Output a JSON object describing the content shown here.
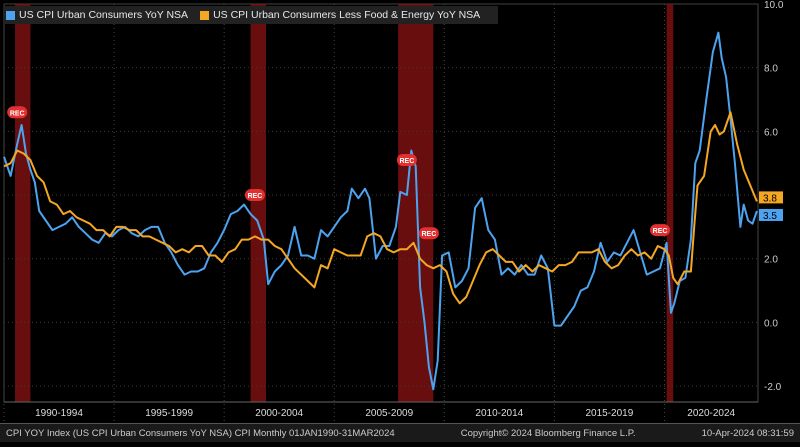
{
  "footer": {
    "series_desc": "CPI YOY Index (US CPI Urban Consumers YoY NSA) CPI  Monthly 01JAN1990-31MAR2024",
    "copyright": "Copyright© 2024 Bloomberg Finance L.P.",
    "timestamp": "10-Apr-2024 08:31:59"
  },
  "colors": {
    "headline": "#4da3f0",
    "core": "#f5a623",
    "recession": "#7a1010",
    "recession_label": "#e03030"
  },
  "chart_data": {
    "type": "line",
    "title": "",
    "xlabel": "",
    "ylabel": "",
    "x_range": [
      1990.0,
      2024.25
    ],
    "ylim": [
      -2.5,
      10.0
    ],
    "y_ticks": [
      -2.0,
      0.0,
      2.0,
      4.0,
      6.0,
      8.0,
      10.0
    ],
    "y_tick_labels": [
      "-2.0",
      "0.0",
      "2.0",
      "4.0",
      "6.0",
      "8.0",
      "10.0"
    ],
    "x_period_labels": [
      {
        "label": "1990-1994",
        "from": 1990,
        "to": 1995
      },
      {
        "label": "1995-1999",
        "from": 1995,
        "to": 2000
      },
      {
        "label": "2000-2004",
        "from": 2000,
        "to": 2005
      },
      {
        "label": "2005-2009",
        "from": 2005,
        "to": 2010
      },
      {
        "label": "2010-2014",
        "from": 2010,
        "to": 2015
      },
      {
        "label": "2015-2019",
        "from": 2015,
        "to": 2020
      },
      {
        "label": "2020-2024",
        "from": 2020,
        "to": 2024.25
      }
    ],
    "grid": true,
    "legend_position": "top-left",
    "recessions": [
      {
        "start": 1990.5,
        "end": 1991.2
      },
      {
        "start": 2001.2,
        "end": 2001.9
      },
      {
        "start": 2007.9,
        "end": 2009.5
      },
      {
        "start": 2020.1,
        "end": 2020.4
      }
    ],
    "recession_labels": [
      {
        "text": "REC",
        "x": 1990.6,
        "y": 6.6
      },
      {
        "text": "REC",
        "x": 2001.4,
        "y": 4.0
      },
      {
        "text": "REC",
        "x": 2008.3,
        "y": 5.1
      },
      {
        "text": "REC",
        "x": 2009.3,
        "y": 2.8
      },
      {
        "text": "REC",
        "x": 2019.8,
        "y": 2.9
      }
    ],
    "series": [
      {
        "name": "US CPI Urban Consumers YoY NSA",
        "color": "#4da3f0",
        "x": [
          1990.0,
          1990.3,
          1990.6,
          1990.8,
          1991.0,
          1991.2,
          1991.4,
          1991.6,
          1991.9,
          1992.2,
          1992.5,
          1992.8,
          1993.1,
          1993.4,
          1993.7,
          1994.0,
          1994.3,
          1994.6,
          1994.9,
          1995.2,
          1995.5,
          1995.8,
          1996.1,
          1996.4,
          1996.7,
          1997.0,
          1997.3,
          1997.6,
          1997.9,
          1998.2,
          1998.5,
          1998.8,
          1999.1,
          1999.4,
          1999.7,
          2000.0,
          2000.3,
          2000.6,
          2000.9,
          2001.2,
          2001.5,
          2001.8,
          2002.0,
          2002.3,
          2002.6,
          2002.9,
          2003.2,
          2003.5,
          2003.8,
          2004.1,
          2004.4,
          2004.7,
          2005.0,
          2005.3,
          2005.6,
          2005.8,
          2006.1,
          2006.4,
          2006.6,
          2006.9,
          2007.2,
          2007.5,
          2007.8,
          2008.0,
          2008.3,
          2008.5,
          2008.7,
          2008.9,
          2009.1,
          2009.3,
          2009.5,
          2009.7,
          2009.9,
          2010.2,
          2010.5,
          2010.8,
          2011.1,
          2011.4,
          2011.7,
          2012.0,
          2012.3,
          2012.6,
          2012.9,
          2013.2,
          2013.5,
          2013.8,
          2014.1,
          2014.4,
          2014.7,
          2015.0,
          2015.3,
          2015.6,
          2015.9,
          2016.2,
          2016.5,
          2016.8,
          2017.1,
          2017.4,
          2017.7,
          2018.0,
          2018.3,
          2018.6,
          2018.9,
          2019.2,
          2019.5,
          2019.8,
          2020.1,
          2020.3,
          2020.45,
          2020.7,
          2020.95,
          2021.2,
          2021.4,
          2021.6,
          2021.9,
          2022.2,
          2022.45,
          2022.6,
          2022.8,
          2023.0,
          2023.2,
          2023.45,
          2023.6,
          2023.8,
          2024.0,
          2024.2
        ],
        "values": [
          5.2,
          4.6,
          5.6,
          6.2,
          5.3,
          4.8,
          4.4,
          3.5,
          3.2,
          2.9,
          3.0,
          3.1,
          3.3,
          3.0,
          2.8,
          2.6,
          2.5,
          2.8,
          2.7,
          2.9,
          3.0,
          2.8,
          2.7,
          2.9,
          3.0,
          3.0,
          2.5,
          2.2,
          1.8,
          1.5,
          1.6,
          1.6,
          1.7,
          2.2,
          2.5,
          2.9,
          3.4,
          3.5,
          3.7,
          3.4,
          3.2,
          2.6,
          1.2,
          1.6,
          1.8,
          2.1,
          3.0,
          2.1,
          2.1,
          2.0,
          2.9,
          2.7,
          3.0,
          3.3,
          3.5,
          4.2,
          3.9,
          4.2,
          3.9,
          2.0,
          2.4,
          2.4,
          3.0,
          4.1,
          4.0,
          5.4,
          4.9,
          1.1,
          0.0,
          -1.4,
          -2.1,
          -1.2,
          2.1,
          2.2,
          1.1,
          1.3,
          1.7,
          3.6,
          3.9,
          2.9,
          2.6,
          1.5,
          1.7,
          1.5,
          1.8,
          1.5,
          1.5,
          2.1,
          1.7,
          -0.1,
          -0.1,
          0.2,
          0.5,
          1.0,
          1.1,
          1.6,
          2.5,
          1.9,
          2.2,
          2.1,
          2.5,
          2.9,
          2.2,
          1.5,
          1.6,
          1.7,
          2.5,
          0.3,
          0.6,
          1.3,
          1.4,
          2.6,
          5.0,
          5.4,
          7.0,
          8.5,
          9.1,
          8.3,
          7.7,
          6.4,
          5.0,
          3.0,
          3.7,
          3.2,
          3.1,
          3.5
        ]
      },
      {
        "name": "US CPI Urban Consumers Less Food & Energy YoY NSA",
        "color": "#f5a623",
        "x": [
          1990.0,
          1990.3,
          1990.6,
          1990.9,
          1991.2,
          1991.5,
          1991.8,
          1992.1,
          1992.4,
          1992.7,
          1993.0,
          1993.3,
          1993.6,
          1993.9,
          1994.2,
          1994.5,
          1994.8,
          1995.1,
          1995.4,
          1995.7,
          1996.0,
          1996.3,
          1996.6,
          1996.9,
          1997.2,
          1997.5,
          1997.8,
          1998.1,
          1998.4,
          1998.7,
          1999.0,
          1999.3,
          1999.6,
          1999.9,
          2000.2,
          2000.5,
          2000.8,
          2001.1,
          2001.4,
          2001.7,
          2002.0,
          2002.3,
          2002.6,
          2002.9,
          2003.2,
          2003.5,
          2003.8,
          2004.1,
          2004.4,
          2004.7,
          2005.0,
          2005.3,
          2005.6,
          2005.9,
          2006.2,
          2006.5,
          2006.8,
          2007.1,
          2007.4,
          2007.7,
          2008.0,
          2008.3,
          2008.6,
          2008.9,
          2009.2,
          2009.5,
          2009.8,
          2010.1,
          2010.4,
          2010.7,
          2011.0,
          2011.3,
          2011.6,
          2011.9,
          2012.2,
          2012.5,
          2012.8,
          2013.1,
          2013.4,
          2013.7,
          2014.0,
          2014.3,
          2014.6,
          2014.9,
          2015.2,
          2015.5,
          2015.8,
          2016.1,
          2016.4,
          2016.7,
          2017.0,
          2017.3,
          2017.6,
          2017.9,
          2018.2,
          2018.5,
          2018.8,
          2019.1,
          2019.4,
          2019.7,
          2020.0,
          2020.2,
          2020.4,
          2020.6,
          2020.9,
          2021.2,
          2021.35,
          2021.5,
          2021.8,
          2022.1,
          2022.3,
          2022.5,
          2022.7,
          2023.0,
          2023.3,
          2023.6,
          2023.9,
          2024.2
        ],
        "values": [
          4.9,
          5.0,
          5.4,
          5.3,
          5.1,
          4.6,
          4.4,
          3.8,
          3.7,
          3.4,
          3.5,
          3.3,
          3.2,
          3.1,
          2.9,
          2.9,
          2.7,
          3.0,
          3.0,
          2.9,
          2.9,
          2.7,
          2.7,
          2.6,
          2.5,
          2.4,
          2.2,
          2.3,
          2.2,
          2.4,
          2.4,
          2.1,
          2.1,
          1.9,
          2.2,
          2.3,
          2.6,
          2.6,
          2.7,
          2.6,
          2.6,
          2.4,
          2.3,
          2.0,
          1.7,
          1.5,
          1.3,
          1.1,
          1.8,
          1.7,
          2.3,
          2.2,
          2.1,
          2.1,
          2.1,
          2.7,
          2.8,
          2.7,
          2.3,
          2.2,
          2.3,
          2.3,
          2.5,
          2.0,
          1.8,
          1.7,
          1.8,
          1.6,
          0.9,
          0.6,
          0.8,
          1.3,
          1.8,
          2.2,
          2.3,
          2.1,
          1.9,
          1.9,
          1.6,
          1.8,
          1.6,
          1.8,
          1.7,
          1.6,
          1.8,
          1.8,
          1.9,
          2.2,
          2.2,
          2.2,
          2.3,
          1.9,
          1.7,
          1.8,
          2.1,
          2.3,
          2.1,
          2.2,
          2.0,
          2.4,
          2.3,
          2.1,
          1.4,
          1.2,
          1.6,
          1.6,
          3.0,
          4.3,
          4.6,
          6.0,
          6.2,
          5.9,
          6.0,
          6.6,
          5.6,
          4.8,
          4.3,
          3.8
        ]
      }
    ],
    "end_labels": [
      {
        "series": 0,
        "text": "3.5"
      },
      {
        "series": 1,
        "text": "3.8"
      }
    ]
  }
}
